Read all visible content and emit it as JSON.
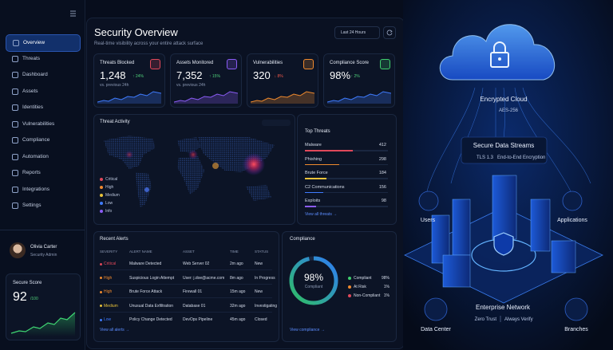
{
  "sidebar": {
    "nav": [
      "Overview",
      "Threats",
      "Dashboard",
      "Assets",
      "Identities",
      "Vulnerabilities",
      "Compliance",
      "Automation",
      "Reports",
      "Integrations",
      "Settings"
    ],
    "user": {
      "name": "Olivia Carter",
      "role": "Security Admin"
    },
    "secure_score": {
      "title": "Secure Score",
      "value": "92",
      "max": "/100"
    }
  },
  "header": {
    "title": "Security Overview",
    "subtitle": "Real-time visibility across your entire attack surface",
    "range": "Last 24 Hours"
  },
  "kpis": [
    {
      "label": "Threats Blocked",
      "value": "1,248",
      "change": "↑ 24%",
      "note": "vs. previous 24h"
    },
    {
      "label": "Assets Monitored",
      "value": "7,352",
      "change": "↑ 15%",
      "note": "vs. previous 24h"
    },
    {
      "label": "Vulnerabilities",
      "value": "320",
      "change": "↓ 8%"
    },
    {
      "label": "Compliance Score",
      "value": "98%",
      "change": "↑ 2%"
    }
  ],
  "threat_activity": {
    "title": "Threat Activity",
    "legend": [
      "Critical",
      "High",
      "Medium",
      "Low",
      "Info"
    ]
  },
  "top_threats": {
    "title": "Top Threats",
    "items": [
      {
        "name": "Malware",
        "count": 412
      },
      {
        "name": "Phishing",
        "count": 298
      },
      {
        "name": "Brute Force",
        "count": 184
      },
      {
        "name": "C2 Communications",
        "count": 156
      },
      {
        "name": "Exploits",
        "count": 98
      }
    ],
    "link": "View all threats →"
  },
  "recent_alerts": {
    "title": "Recent Alerts",
    "columns": [
      "SEVERITY",
      "ALERT NAME",
      "ASSET",
      "TIME",
      "STATUS"
    ],
    "rows": [
      [
        "Critical",
        "Malware Detected",
        "Web Server 02",
        "2m ago",
        "New"
      ],
      [
        "High",
        "Suspicious Login Attempt",
        "User: j.doe@acme.com",
        "8m ago",
        "In Progress"
      ],
      [
        "High",
        "Brute Force Attack",
        "Firewall 01",
        "15m ago",
        "New"
      ],
      [
        "Medium",
        "Unusual Data Exfiltration",
        "Database 01",
        "32m ago",
        "Investigating"
      ],
      [
        "Low",
        "Policy Change Detected",
        "DevOps Pipeline",
        "45m ago",
        "Closed"
      ]
    ],
    "link": "View all alerts →"
  },
  "compliance": {
    "title": "Compliance",
    "score": "98%",
    "score_label": "Compliant",
    "legend": [
      {
        "name": "Compliant",
        "value": "98%"
      },
      {
        "name": "At Risk",
        "value": "1%"
      },
      {
        "name": "Non-Compliant",
        "value": "1%"
      }
    ],
    "link": "View compliance →"
  },
  "illustration": {
    "cloud": {
      "title": "Encrypted Cloud",
      "detail": "AES-256"
    },
    "streams": {
      "title": "Secure Data Streams",
      "protocol": "TLS 1.3",
      "detail": "End-to-End Encryption"
    },
    "users": "Users",
    "applications": "Applications",
    "network": {
      "title": "Enterprise Network",
      "detail_1": "Zero Trust",
      "detail_2": "Always Verify"
    },
    "data_center": "Data Center",
    "branches": "Branches"
  }
}
